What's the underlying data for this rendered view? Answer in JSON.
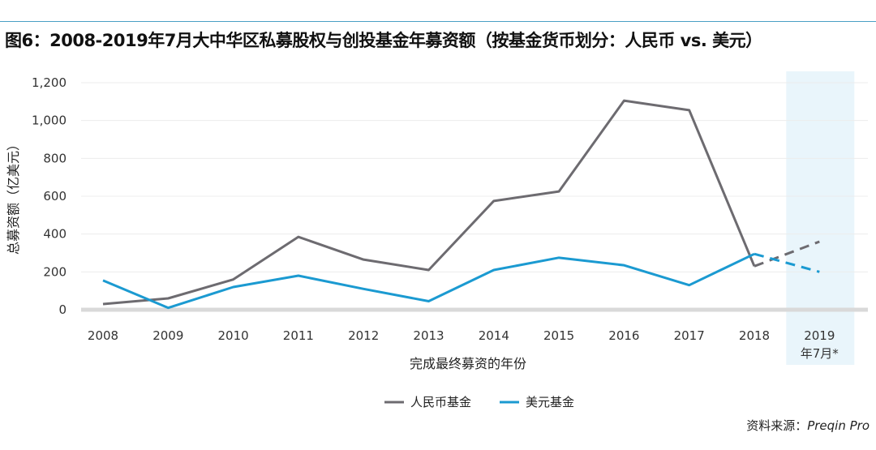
{
  "title": "图6：2008-2019年7月大中华区私募股权与创投基金年募资额（按基金货币划分：人民币 vs. 美元）",
  "source_prefix": "资料来源：",
  "source_name": "Preqin Pro",
  "chart_data": {
    "type": "line",
    "title": "图6：2008-2019年7月大中华区私募股权与创投基金年募资额（按基金货币划分：人民币 vs. 美元）",
    "xlabel": "完成最终募资的年份",
    "ylabel": "总募资额（亿美元）",
    "ylim": [
      0,
      1200
    ],
    "yticks": [
      0,
      200,
      400,
      600,
      800,
      1000,
      1200
    ],
    "ytick_labels": [
      "0",
      "200",
      "400",
      "600",
      "800",
      "1,000",
      "1,200"
    ],
    "categories": [
      "2008",
      "2009",
      "2010",
      "2011",
      "2012",
      "2013",
      "2014",
      "2015",
      "2016",
      "2017",
      "2018",
      "2019\n年7月*"
    ],
    "category_lines": [
      [
        "2008"
      ],
      [
        "2009"
      ],
      [
        "2010"
      ],
      [
        "2011"
      ],
      [
        "2012"
      ],
      [
        "2013"
      ],
      [
        "2014"
      ],
      [
        "2015"
      ],
      [
        "2016"
      ],
      [
        "2017"
      ],
      [
        "2018"
      ],
      [
        "2019",
        "年7月*"
      ]
    ],
    "highlight_category": "2019\n年7月*",
    "legend_position": "bottom-center",
    "series": [
      {
        "name": "人民币基金",
        "color": "#6d6b70",
        "values": [
          30,
          60,
          160,
          385,
          265,
          210,
          575,
          625,
          1105,
          1055,
          230,
          360
        ],
        "dashed_last": true
      },
      {
        "name": "美元基金",
        "color": "#1b9ad1",
        "values": [
          155,
          10,
          120,
          180,
          110,
          45,
          210,
          275,
          235,
          130,
          295,
          200
        ],
        "dashed_last": true
      }
    ]
  }
}
